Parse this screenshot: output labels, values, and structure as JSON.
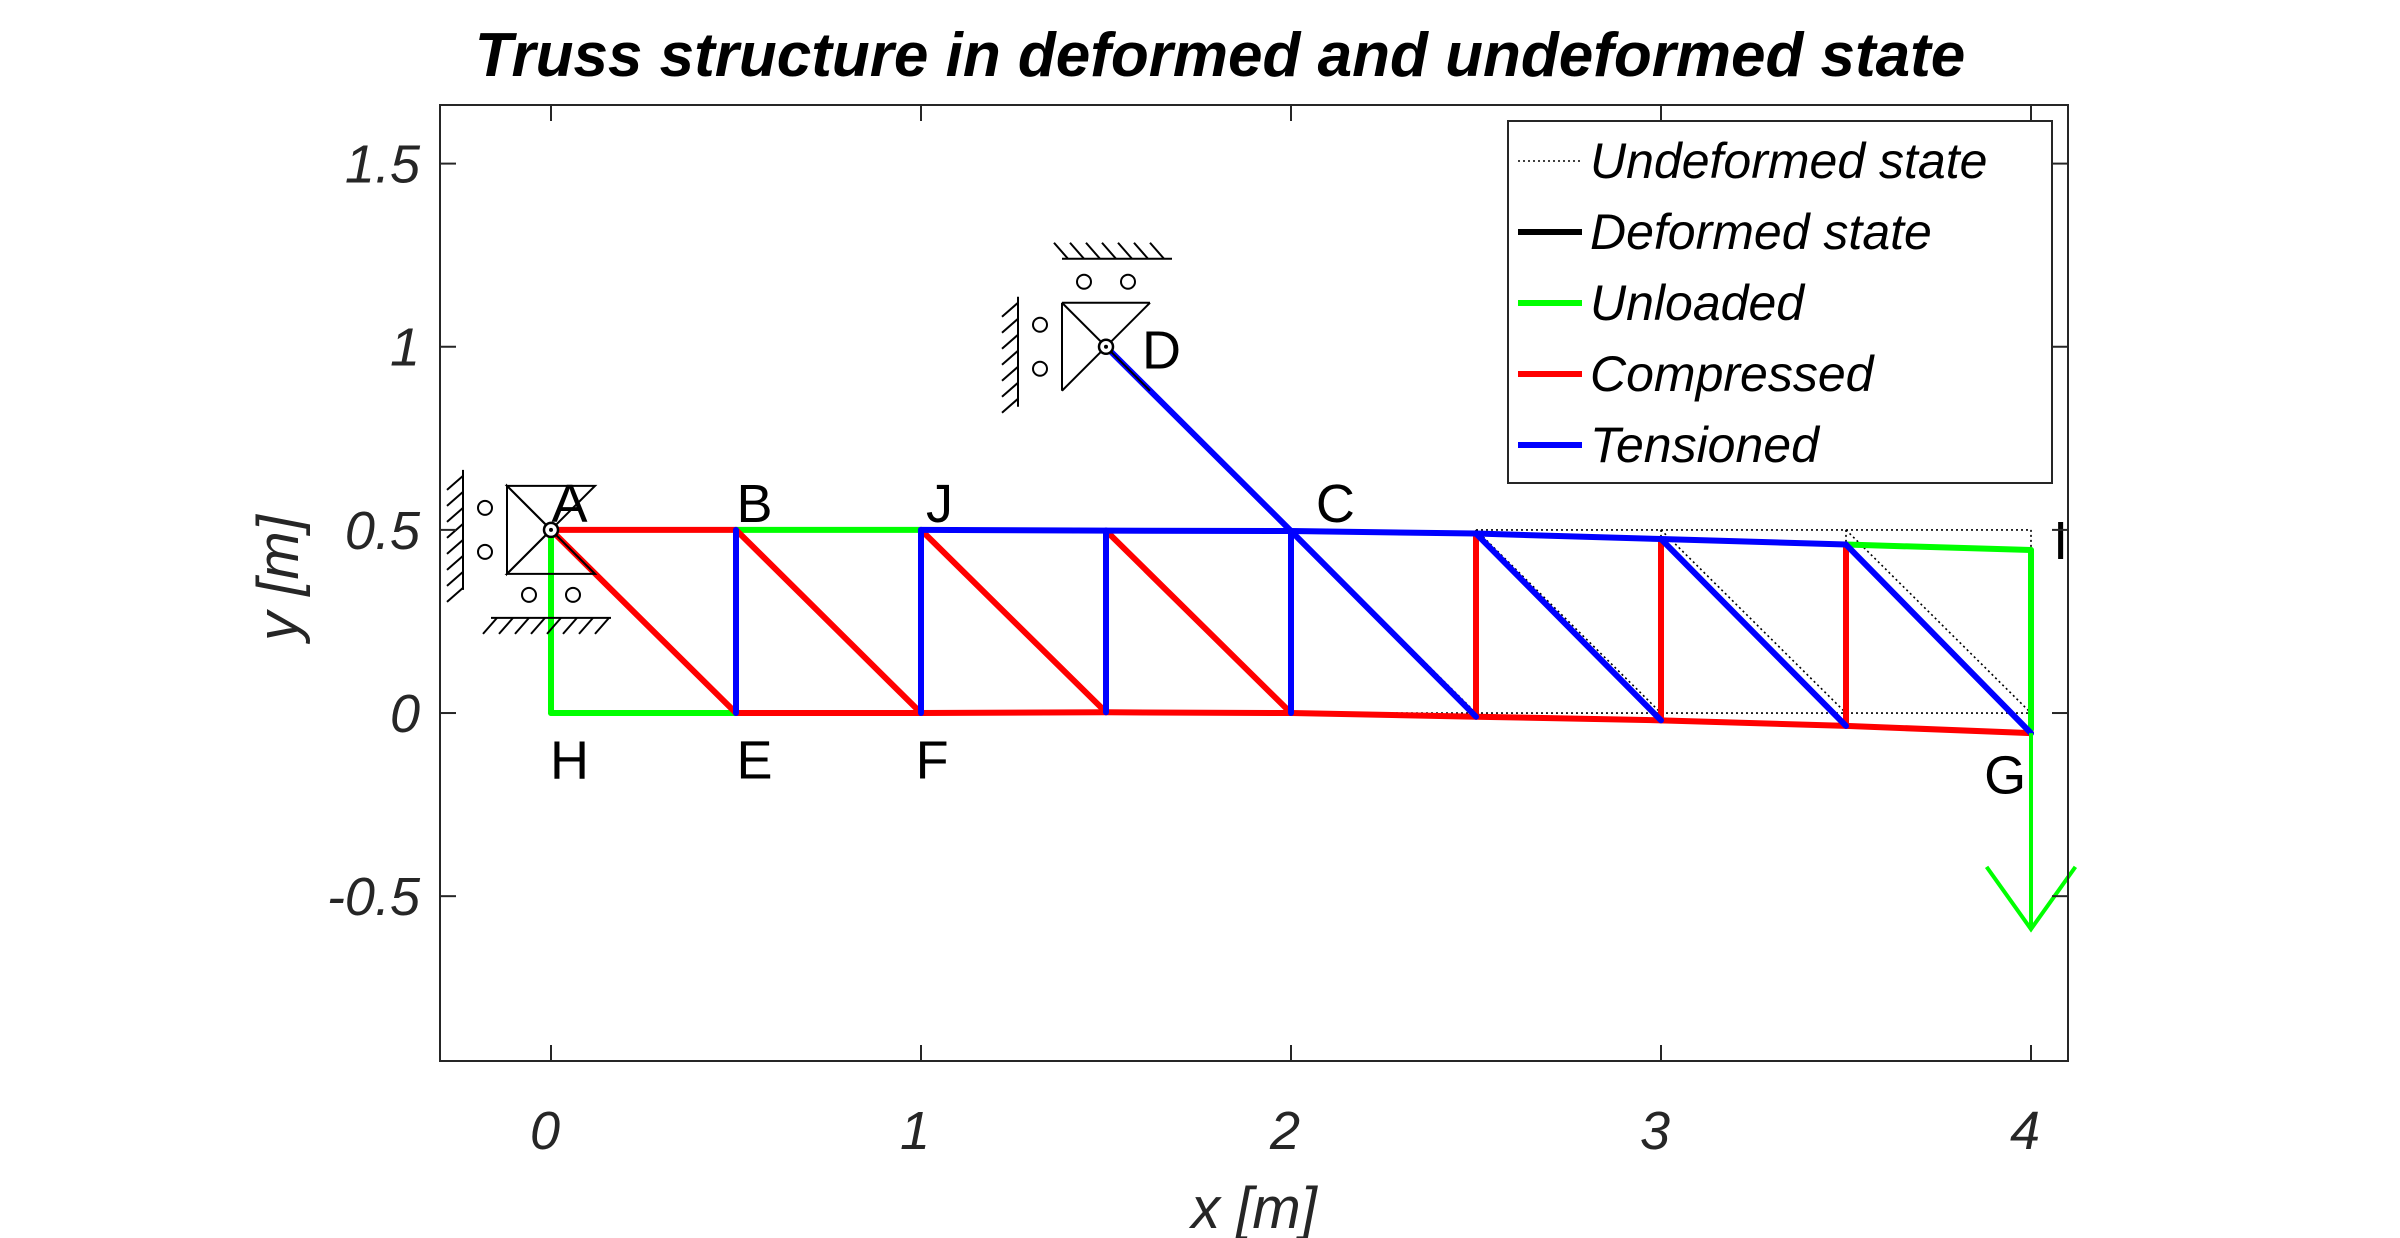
{
  "chart_data": {
    "type": "line",
    "title": "Truss structure in deformed and undeformed state",
    "xlabel": "x [m]",
    "ylabel": "y [m]",
    "xlim": [
      -0.3,
      4.1
    ],
    "ylim": [
      -0.95,
      1.66
    ],
    "xticks": [
      0,
      1,
      2,
      3,
      4
    ],
    "xtick_labels": [
      "0",
      "1",
      "2",
      "3",
      "4"
    ],
    "yticks": [
      -0.5,
      0,
      0.5,
      1,
      1.5
    ],
    "ytick_labels": [
      "-0.5",
      "0",
      "0.5",
      "1",
      "1.5"
    ],
    "grid": false,
    "legend_position": "top-right",
    "legend": [
      {
        "label": "Undeformed state",
        "style": "dotted",
        "color": "#000000"
      },
      {
        "label": "Deformed state",
        "style": "solid",
        "color": "#000000"
      },
      {
        "label": "Unloaded",
        "style": "solid",
        "color": "#00ff00"
      },
      {
        "label": "Compressed",
        "style": "solid",
        "color": "#ff0000"
      },
      {
        "label": "Tensioned",
        "style": "solid",
        "color": "#0000ff"
      }
    ],
    "colors": {
      "Unloaded": "#00ff00",
      "Compressed": "#ff0000",
      "Tensioned": "#0000ff",
      "Undeformed state": "#000000"
    },
    "node_labels": [
      {
        "label": "A",
        "x": 0.05,
        "y": 0.57
      },
      {
        "label": "B",
        "x": 0.55,
        "y": 0.57
      },
      {
        "label": "J",
        "x": 1.05,
        "y": 0.57
      },
      {
        "label": "C",
        "x": 2.12,
        "y": 0.57
      },
      {
        "label": "D",
        "x": 1.65,
        "y": 0.99
      },
      {
        "label": "I",
        "x": 4.08,
        "y": 0.47
      },
      {
        "label": "H",
        "x": 0.05,
        "y": -0.13
      },
      {
        "label": "E",
        "x": 0.55,
        "y": -0.13
      },
      {
        "label": "F",
        "x": 1.03,
        "y": -0.13
      },
      {
        "label": "G",
        "x": 3.93,
        "y": -0.17
      }
    ],
    "undeformed_segments": [
      [
        [
          2.5,
          0.5
        ],
        [
          4,
          0.5
        ]
      ],
      [
        [
          4,
          0.5
        ],
        [
          4,
          0
        ]
      ],
      [
        [
          2,
          0
        ],
        [
          4,
          0
        ]
      ],
      [
        [
          2.5,
          0.5
        ],
        [
          2.5,
          0
        ]
      ],
      [
        [
          3,
          0.5
        ],
        [
          3,
          0
        ]
      ],
      [
        [
          3.5,
          0.5
        ],
        [
          3.5,
          0
        ]
      ],
      [
        [
          2,
          0.5
        ],
        [
          2.5,
          0
        ]
      ],
      [
        [
          2.5,
          0.5
        ],
        [
          3,
          0
        ]
      ],
      [
        [
          3,
          0.5
        ],
        [
          3.5,
          0
        ]
      ],
      [
        [
          3.5,
          0.5
        ],
        [
          4,
          0
        ]
      ]
    ],
    "members": [
      {
        "state": "Unloaded",
        "points": [
          [
            0,
            0.5
          ],
          [
            0,
            0
          ]
        ]
      },
      {
        "state": "Unloaded",
        "points": [
          [
            0,
            0
          ],
          [
            0.5,
            0
          ]
        ]
      },
      {
        "state": "Unloaded",
        "points": [
          [
            0.5,
            0.5
          ],
          [
            1,
            0.5
          ]
        ]
      },
      {
        "state": "Unloaded",
        "points": [
          [
            3.5,
            0.46
          ],
          [
            4,
            0.445
          ]
        ]
      },
      {
        "state": "Unloaded",
        "points": [
          [
            4,
            0.445
          ],
          [
            4,
            -0.045
          ]
        ]
      },
      {
        "state": "Compressed",
        "points": [
          [
            0,
            0.5
          ],
          [
            0.5,
            0.5
          ]
        ]
      },
      {
        "state": "Compressed",
        "points": [
          [
            0,
            0.5
          ],
          [
            0.5,
            0
          ]
        ]
      },
      {
        "state": "Compressed",
        "points": [
          [
            0.5,
            0.5
          ],
          [
            1,
            0
          ]
        ]
      },
      {
        "state": "Compressed",
        "points": [
          [
            1,
            0.5
          ],
          [
            1.5,
            0.002
          ]
        ]
      },
      {
        "state": "Compressed",
        "points": [
          [
            1.5,
            0.498
          ],
          [
            2,
            0.0
          ]
        ]
      },
      {
        "state": "Compressed",
        "points": [
          [
            0.5,
            0
          ],
          [
            1,
            0
          ]
        ]
      },
      {
        "state": "Compressed",
        "points": [
          [
            1,
            0
          ],
          [
            1.5,
            0.002
          ]
        ]
      },
      {
        "state": "Compressed",
        "points": [
          [
            1.5,
            0.002
          ],
          [
            2,
            0.0
          ]
        ]
      },
      {
        "state": "Compressed",
        "points": [
          [
            2,
            0.0
          ],
          [
            2.5,
            -0.01
          ]
        ]
      },
      {
        "state": "Compressed",
        "points": [
          [
            2.5,
            -0.01
          ],
          [
            3,
            -0.02
          ]
        ]
      },
      {
        "state": "Compressed",
        "points": [
          [
            3,
            -0.02
          ],
          [
            3.5,
            -0.035
          ]
        ]
      },
      {
        "state": "Compressed",
        "points": [
          [
            3.5,
            -0.035
          ],
          [
            4,
            -0.055
          ]
        ]
      },
      {
        "state": "Compressed",
        "points": [
          [
            2.5,
            0.49
          ],
          [
            2.5,
            -0.01
          ]
        ]
      },
      {
        "state": "Compressed",
        "points": [
          [
            3,
            0.475
          ],
          [
            3,
            -0.02
          ]
        ]
      },
      {
        "state": "Compressed",
        "points": [
          [
            3.5,
            0.46
          ],
          [
            3.5,
            -0.035
          ]
        ]
      },
      {
        "state": "Tensioned",
        "points": [
          [
            0.5,
            0.5
          ],
          [
            0.5,
            0
          ]
        ]
      },
      {
        "state": "Tensioned",
        "points": [
          [
            1,
            0.5
          ],
          [
            1,
            0
          ]
        ]
      },
      {
        "state": "Tensioned",
        "points": [
          [
            1.5,
            0.498
          ],
          [
            1.5,
            0.002
          ]
        ]
      },
      {
        "state": "Tensioned",
        "points": [
          [
            2,
            0.497
          ],
          [
            2,
            0.0
          ]
        ]
      },
      {
        "state": "Tensioned",
        "points": [
          [
            1,
            0.5
          ],
          [
            1.5,
            0.498
          ]
        ]
      },
      {
        "state": "Tensioned",
        "points": [
          [
            1.5,
            0.498
          ],
          [
            2,
            0.497
          ]
        ]
      },
      {
        "state": "Tensioned",
        "points": [
          [
            2,
            0.497
          ],
          [
            2.5,
            0.49
          ]
        ]
      },
      {
        "state": "Tensioned",
        "points": [
          [
            2.5,
            0.49
          ],
          [
            3,
            0.475
          ]
        ]
      },
      {
        "state": "Tensioned",
        "points": [
          [
            3,
            0.475
          ],
          [
            3.5,
            0.46
          ]
        ]
      },
      {
        "state": "Tensioned",
        "points": [
          [
            1.5,
            1.0
          ],
          [
            2,
            0.497
          ]
        ]
      },
      {
        "state": "Tensioned",
        "points": [
          [
            2,
            0.497
          ],
          [
            2.5,
            -0.01
          ]
        ]
      },
      {
        "state": "Tensioned",
        "points": [
          [
            2.5,
            0.49
          ],
          [
            3,
            -0.02
          ]
        ]
      },
      {
        "state": "Tensioned",
        "points": [
          [
            3,
            0.475
          ],
          [
            3.5,
            -0.035
          ]
        ]
      },
      {
        "state": "Tensioned",
        "points": [
          [
            3.5,
            0.46
          ],
          [
            4,
            -0.055
          ]
        ]
      }
    ],
    "load_arrow": {
      "color": "#00ff00",
      "from": [
        4,
        -0.055
      ],
      "to": [
        4,
        -0.59
      ],
      "head": [
        [
          3.88,
          -0.42
        ],
        [
          4,
          -0.59
        ],
        [
          4.12,
          -0.42
        ]
      ]
    },
    "supports": [
      {
        "name": "support-A",
        "x": 0,
        "y": 0.5
      },
      {
        "name": "support-D",
        "x": 1.5,
        "y": 1.0
      }
    ]
  }
}
